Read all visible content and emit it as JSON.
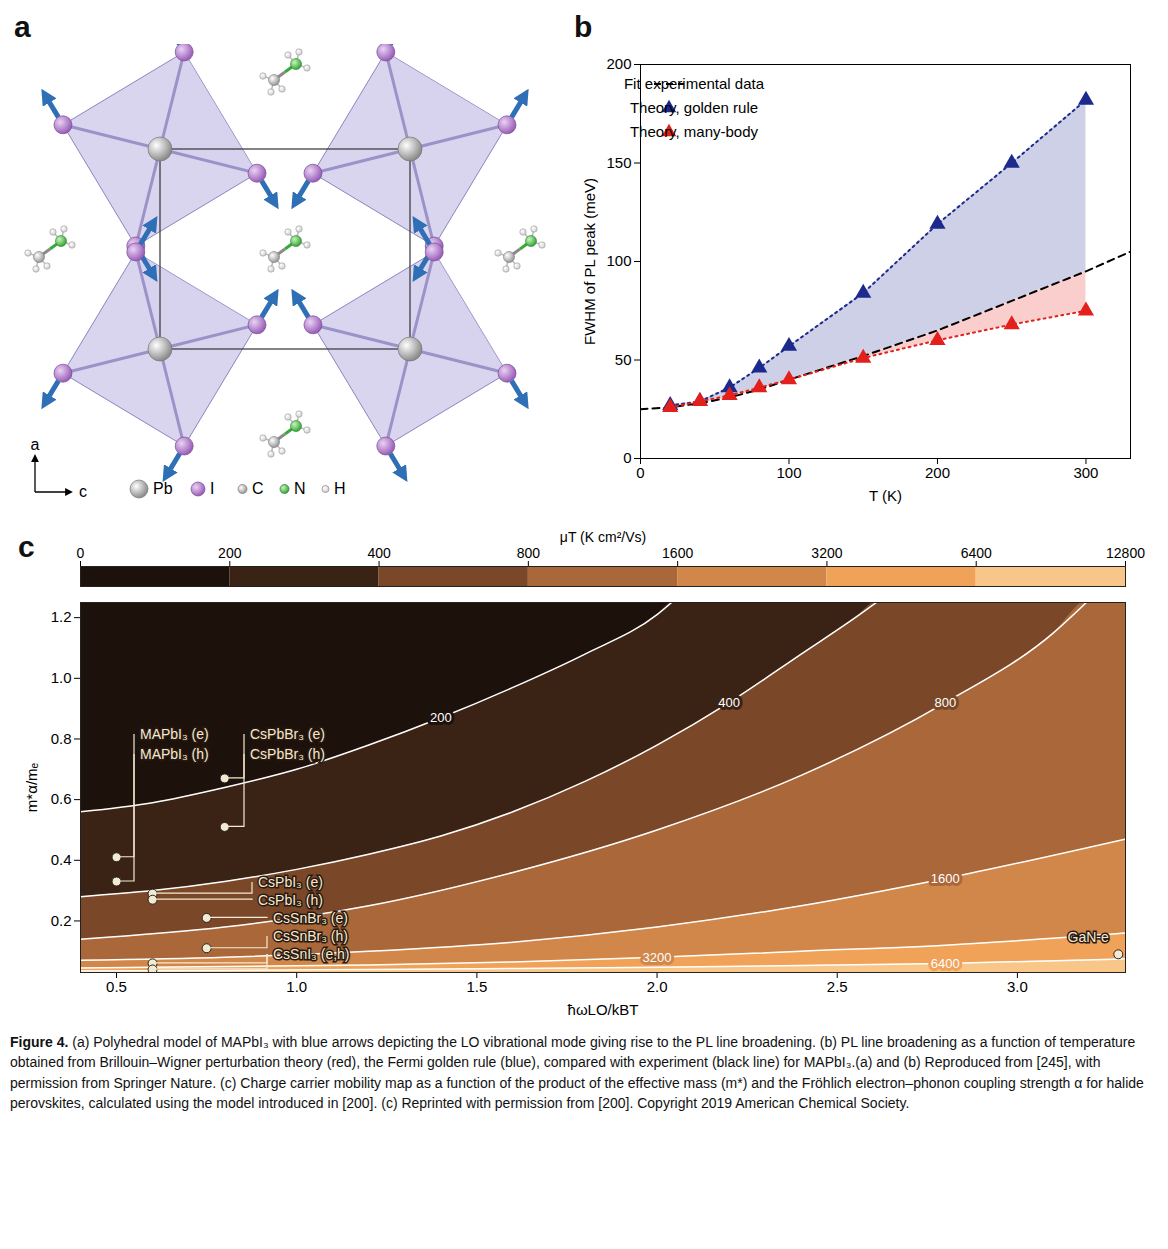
{
  "diagram": {
    "panel": "a",
    "axis_labels": [
      "a",
      "c"
    ],
    "legend": [
      "Pb",
      "I",
      "C",
      "N",
      "H"
    ]
  },
  "chart_data": [
    {
      "panel": "b",
      "type": "line",
      "x_label": "T (K)",
      "y_label": "FWHM of PL peak (meV)",
      "xlim": [
        0,
        330
      ],
      "xticks": [
        0,
        100,
        200,
        300
      ],
      "ylim": [
        0,
        200
      ],
      "yticks": [
        0,
        50,
        100,
        150,
        200
      ],
      "legend": "top-left",
      "series": [
        {
          "name": "Fit experimental data",
          "color": "#000000",
          "marker": "none",
          "line_style": "dashed",
          "x": [
            0,
            20,
            40,
            60,
            80,
            100,
            150,
            200,
            250,
            300,
            330
          ],
          "values": [
            25,
            26,
            28,
            31,
            35,
            40,
            52,
            65,
            80,
            95,
            105
          ]
        },
        {
          "name": "Theory, golden rule",
          "color": "#1b2a8c",
          "marker": "triangle",
          "line_style": "dotted",
          "x": [
            20,
            40,
            60,
            80,
            100,
            150,
            200,
            250,
            300
          ],
          "values": [
            27,
            29,
            36,
            46,
            57,
            84,
            119,
            150,
            182
          ]
        },
        {
          "name": "Theory, many-body",
          "color": "#e3201b",
          "marker": "triangle",
          "line_style": "dotted",
          "x": [
            20,
            40,
            60,
            80,
            100,
            150,
            200,
            250,
            300
          ],
          "values": [
            26,
            29,
            32,
            36,
            40,
            51,
            60,
            68,
            75
          ]
        }
      ]
    },
    {
      "panel": "c",
      "type": "contour",
      "x_label": "ħωLO/kBT",
      "y_label": "m*α/mₑ",
      "xlim": [
        0.4,
        3.3
      ],
      "xticks": [
        0.5,
        {
          "value": 1,
          "label": "1.0"
        },
        1.5,
        {
          "value": 2,
          "label": "2.0"
        },
        2.5,
        {
          "value": 3,
          "label": "3.0"
        }
      ],
      "ylim": [
        0.03,
        1.25
      ],
      "yticks": [
        0.2,
        0.4,
        0.6,
        0.8,
        {
          "value": 1,
          "label": "1.0"
        },
        1.2
      ],
      "color": "#f4ead0",
      "marker": "circle",
      "colorbar": {
        "label": "μT (K cm²/Vs)",
        "ticks": [
          0,
          200,
          400,
          800,
          1600,
          3200,
          6400,
          12800
        ],
        "colors": [
          "#1c110b",
          "#3a2315",
          "#7a4828",
          "#a9673a",
          "#d1864a",
          "#f0a259",
          "#f9c68a"
        ]
      },
      "contours": [
        {
          "level": 200,
          "x": [
            0.4,
            0.6,
            0.8,
            1.0,
            1.2,
            1.4,
            1.6,
            1.8,
            2.0,
            2.05
          ],
          "y": [
            0.56,
            0.59,
            0.64,
            0.7,
            0.78,
            0.87,
            0.97,
            1.08,
            1.21,
            1.26
          ]
        },
        {
          "level": 400,
          "x": [
            0.4,
            0.6,
            0.8,
            1.0,
            1.2,
            1.4,
            1.6,
            1.8,
            2.0,
            2.2,
            2.4,
            2.55,
            2.62
          ],
          "y": [
            0.28,
            0.3,
            0.33,
            0.37,
            0.42,
            0.48,
            0.56,
            0.66,
            0.78,
            0.92,
            1.08,
            1.2,
            1.26
          ]
        },
        {
          "level": 800,
          "x": [
            0.4,
            0.8,
            1.2,
            1.6,
            2.0,
            2.4,
            2.8,
            3.1,
            3.2
          ],
          "y": [
            0.14,
            0.18,
            0.25,
            0.36,
            0.5,
            0.68,
            0.92,
            1.15,
            1.26
          ]
        },
        {
          "level": 1600,
          "x": [
            0.4,
            0.8,
            1.2,
            1.6,
            2.0,
            2.4,
            2.8,
            3.3
          ],
          "y": [
            0.07,
            0.08,
            0.1,
            0.13,
            0.18,
            0.25,
            0.34,
            0.47
          ]
        },
        {
          "level": 3200,
          "x": [
            0.4,
            0.8,
            1.2,
            1.6,
            2.0,
            2.4,
            2.8,
            3.3
          ],
          "y": [
            0.045,
            0.05,
            0.055,
            0.065,
            0.08,
            0.1,
            0.12,
            0.16
          ]
        },
        {
          "level": 6400,
          "x": [
            0.4,
            0.8,
            1.2,
            1.6,
            2.0,
            2.4,
            2.8,
            3.3
          ],
          "y": [
            0.035,
            0.037,
            0.04,
            0.043,
            0.047,
            0.053,
            0.06,
            0.075
          ]
        }
      ],
      "series": [
        {
          "name": "MAPbI₃ (e)",
          "x": [
            0.5
          ],
          "values": [
            0.41
          ]
        },
        {
          "name": "MAPbI₃ (h)",
          "x": [
            0.5
          ],
          "values": [
            0.33
          ]
        },
        {
          "name": "CsPbBr₃ (e)",
          "x": [
            0.8
          ],
          "values": [
            0.67
          ]
        },
        {
          "name": "CsPbBr₃ (h)",
          "x": [
            0.8
          ],
          "values": [
            0.51
          ]
        },
        {
          "name": "CsPbI₃ (e)",
          "x": [
            0.6
          ],
          "values": [
            0.29
          ]
        },
        {
          "name": "CsPbI₃ (h)",
          "x": [
            0.6
          ],
          "values": [
            0.27
          ]
        },
        {
          "name": "CsSnBr₃ (e)",
          "x": [
            0.75
          ],
          "values": [
            0.21
          ]
        },
        {
          "name": "CsSnBr₃ (h)",
          "x": [
            0.75
          ],
          "values": [
            0.11
          ]
        },
        {
          "name": "CsSnI₃ (e,h)",
          "x": [
            0.6,
            0.6
          ],
          "values": [
            0.06,
            0.04
          ]
        },
        {
          "name": "GaN-e",
          "x": [
            3.28
          ],
          "values": [
            0.09
          ]
        }
      ]
    }
  ],
  "caption": {
    "label": "Figure 4.",
    "text": "(a) Polyhedral model of MAPbI₃ with blue arrows depicting the LO vibrational mode giving rise to the PL line broadening. (b) PL line broadening as a function of temperature obtained from Brillouin–Wigner perturbation theory (red), the Fermi golden rule (blue), compared with experiment (black line) for MAPbI₃.(a) and (b) Reproduced from [245], with permission from Springer Nature. (c) Charge carrier mobility map as a function of the product of the effective mass (m*) and the Fröhlich electron–phonon coupling strength α for halide perovskites, calculated using the model introduced in [200]. (c) Reprinted with permission from [200]. Copyright 2019 American Chemical Society."
  }
}
